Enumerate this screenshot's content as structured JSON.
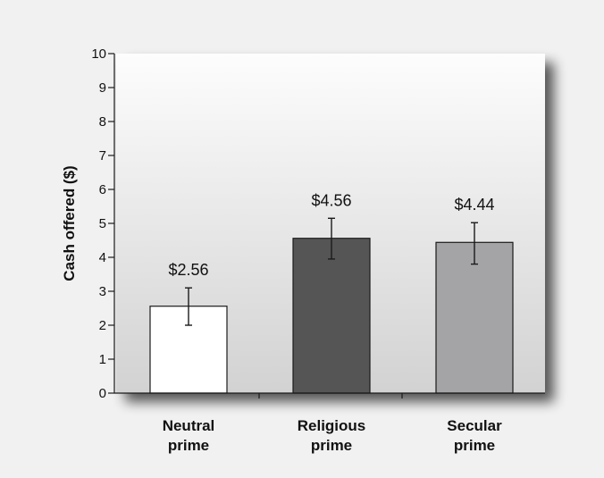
{
  "chart_data": {
    "type": "bar",
    "ylabel": "Cash offered ($)",
    "ylim": [
      0,
      10
    ],
    "yticks": [
      0,
      1,
      2,
      3,
      4,
      5,
      6,
      7,
      8,
      9,
      10
    ],
    "grid": false,
    "categories": [
      {
        "line1": "Neutral",
        "line2": "prime"
      },
      {
        "line1": "Religious",
        "line2": "prime"
      },
      {
        "line1": "Secular",
        "line2": "prime"
      }
    ],
    "values": [
      2.56,
      4.56,
      4.44
    ],
    "value_labels": [
      "$2.56",
      "$4.56",
      "$4.44"
    ],
    "error_bars": [
      {
        "low": 2.0,
        "high": 3.1
      },
      {
        "low": 3.95,
        "high": 5.15
      },
      {
        "low": 3.8,
        "high": 5.02
      }
    ],
    "bar_colors": [
      "#ffffff",
      "#555555",
      "#a4a4a6"
    ],
    "colors": {
      "page_background": "#f1f1f1",
      "plot_background_light": "#fdfdfd",
      "plot_background_dark": "#d2d2d2",
      "bar_outline": "#1a1a1a",
      "axis": "#1a1a1a",
      "text": "#111111"
    }
  }
}
